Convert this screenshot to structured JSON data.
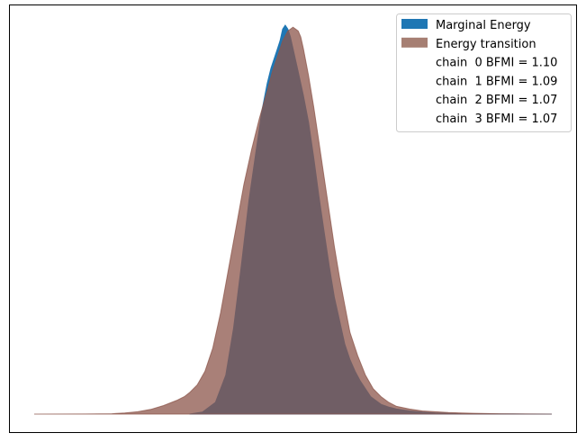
{
  "chart_data": {
    "type": "area",
    "title": "",
    "xlabel": "",
    "ylabel": "",
    "x_ticks_visible": false,
    "y_ticks_visible": false,
    "grid": false,
    "xlim": [
      -1,
      1
    ],
    "ylim": [
      0,
      1.04
    ],
    "legend": {
      "placement": "top-right"
    },
    "series": [
      {
        "name": "Marginal Energy",
        "color": "#1f77b4",
        "opacity": 1.0,
        "x": [
          -0.4,
          -0.35,
          -0.3,
          -0.26,
          -0.23,
          -0.2,
          -0.17,
          -0.14,
          -0.12,
          -0.1,
          -0.085,
          -0.07,
          -0.06,
          -0.05,
          -0.04,
          -0.03,
          -0.02,
          -0.01,
          0.0,
          0.01,
          0.02,
          0.04,
          0.06,
          0.08,
          0.1,
          0.12,
          0.14,
          0.16,
          0.18,
          0.2,
          0.22,
          0.24,
          0.26,
          0.28,
          0.3,
          0.32,
          0.34,
          0.37,
          0.4,
          0.45,
          0.5,
          0.55,
          0.6,
          0.65,
          0.7,
          0.75,
          0.8,
          0.85,
          0.9,
          1.0
        ],
        "y": [
          0.0,
          0.005,
          0.03,
          0.1,
          0.22,
          0.38,
          0.55,
          0.69,
          0.78,
          0.85,
          0.89,
          0.92,
          0.94,
          0.96,
          0.99,
          1.0,
          0.99,
          0.97,
          0.94,
          0.91,
          0.88,
          0.82,
          0.75,
          0.66,
          0.56,
          0.47,
          0.38,
          0.3,
          0.24,
          0.18,
          0.14,
          0.11,
          0.085,
          0.065,
          0.045,
          0.035,
          0.025,
          0.018,
          0.013,
          0.008,
          0.005,
          0.003,
          0.002,
          0.001,
          0.0008,
          0.0005,
          0.0003,
          0.0002,
          0.0001,
          0.0
        ]
      },
      {
        "name": "Energy transition",
        "color": "#8c564b",
        "opacity": 0.75,
        "x": [
          -1.0,
          -0.8,
          -0.7,
          -0.65,
          -0.6,
          -0.55,
          -0.5,
          -0.45,
          -0.42,
          -0.4,
          -0.37,
          -0.34,
          -0.31,
          -0.28,
          -0.25,
          -0.22,
          -0.19,
          -0.16,
          -0.13,
          -0.1,
          -0.08,
          -0.06,
          -0.04,
          -0.02,
          0.0,
          0.01,
          0.02,
          0.03,
          0.04,
          0.06,
          0.08,
          0.1,
          0.12,
          0.14,
          0.16,
          0.18,
          0.2,
          0.22,
          0.25,
          0.28,
          0.31,
          0.34,
          0.37,
          0.4,
          0.45,
          0.5,
          0.6,
          0.7,
          0.8,
          1.0
        ],
        "y": [
          0.0,
          0.0003,
          0.001,
          0.003,
          0.006,
          0.012,
          0.022,
          0.035,
          0.045,
          0.055,
          0.075,
          0.11,
          0.17,
          0.26,
          0.37,
          0.48,
          0.59,
          0.68,
          0.76,
          0.83,
          0.88,
          0.92,
          0.96,
          0.985,
          0.995,
          0.99,
          0.985,
          0.97,
          0.94,
          0.87,
          0.79,
          0.7,
          0.61,
          0.52,
          0.43,
          0.35,
          0.28,
          0.21,
          0.15,
          0.1,
          0.065,
          0.045,
          0.03,
          0.02,
          0.013,
          0.008,
          0.004,
          0.002,
          0.001,
          0.0
        ]
      }
    ],
    "legend_entries": [
      {
        "label": "Marginal Energy",
        "kind": "patch",
        "color": "#1f77b4"
      },
      {
        "label": "Energy transition",
        "kind": "patch",
        "color": "#a67f73"
      },
      {
        "label": "chain  0 BFMI = 1.10",
        "kind": "text"
      },
      {
        "label": "chain  1 BFMI = 1.09",
        "kind": "text"
      },
      {
        "label": "chain  2 BFMI = 1.07",
        "kind": "text"
      },
      {
        "label": "chain  3 BFMI = 1.07",
        "kind": "text"
      }
    ]
  }
}
